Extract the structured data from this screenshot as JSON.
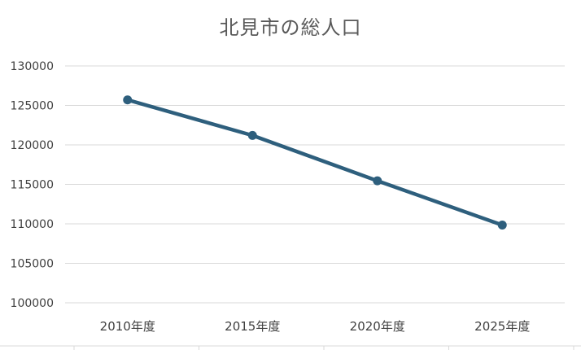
{
  "chart_data": {
    "type": "line",
    "title": "北見市の総人口",
    "xlabel": "",
    "ylabel": "",
    "categories": [
      "2010年度",
      "2015年度",
      "2020年度",
      "2025年度"
    ],
    "series": [
      {
        "values": [
          125700,
          121200,
          115450,
          109850
        ]
      }
    ],
    "ylim": [
      100000,
      130000
    ],
    "yticks": [
      100000,
      105000,
      110000,
      115000,
      120000,
      125000,
      130000
    ],
    "grid": true,
    "legend": "none",
    "colors": {
      "line": "#2e5f7d",
      "grid": "#d9d9d9",
      "axis_text": "#404040",
      "title": "#595959"
    }
  }
}
